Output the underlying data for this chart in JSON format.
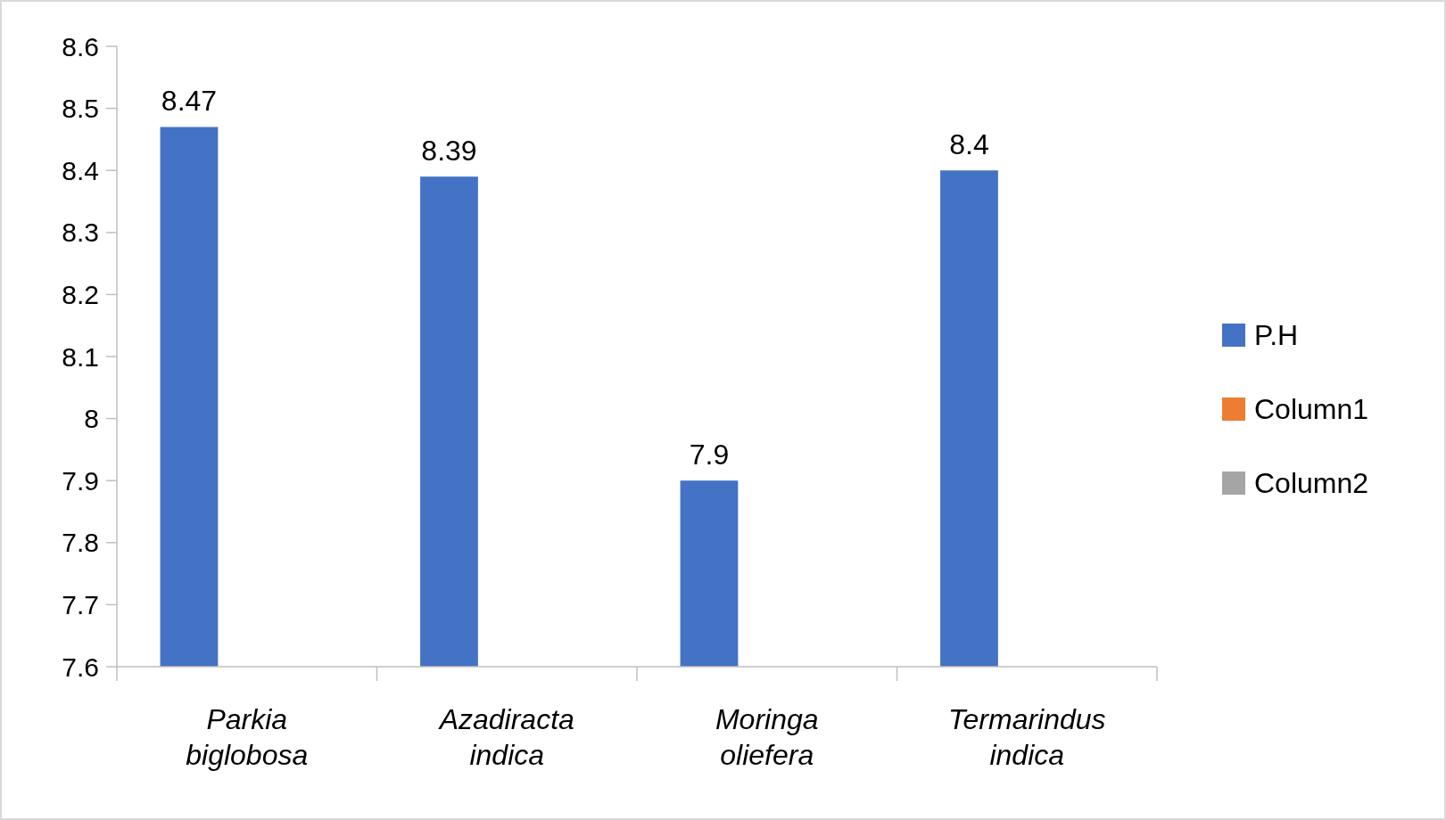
{
  "chart_data": {
    "type": "bar",
    "categories": [
      "Parkia biglobosa",
      "Azadiracta indica",
      "Moringa oliefera",
      "Termarindus indica"
    ],
    "series": [
      {
        "name": "P.H",
        "color": "#4472c4",
        "values": [
          8.47,
          8.39,
          7.9,
          8.4
        ]
      },
      {
        "name": "Column1",
        "color": "#ed7d31",
        "values": [
          null,
          null,
          null,
          null
        ]
      },
      {
        "name": "Column2",
        "color": "#a5a5a5",
        "values": [
          null,
          null,
          null,
          null
        ]
      }
    ],
    "ylim": [
      7.6,
      8.6
    ],
    "yticks": [
      7.6,
      7.7,
      7.8,
      7.9,
      8,
      8.1,
      8.2,
      8.3,
      8.4,
      8.5,
      8.6
    ],
    "data_labels": true,
    "grid": false,
    "legend": "right"
  }
}
